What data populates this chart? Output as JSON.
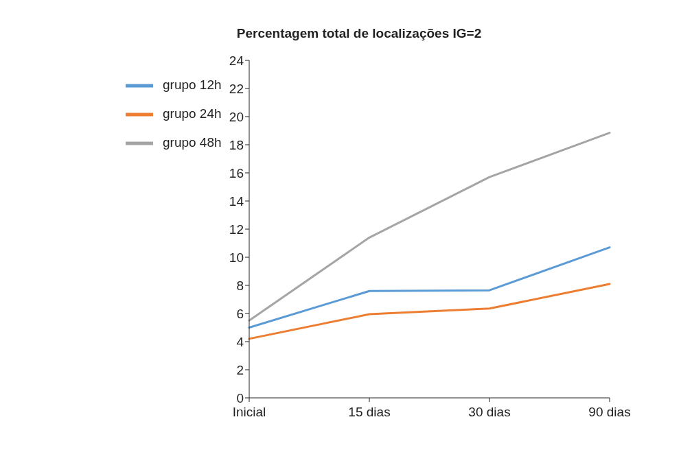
{
  "chart_data": {
    "type": "line",
    "title": "Percentagem total de localizações IG=2",
    "categories": [
      "Inicial",
      "15 dias",
      "30 dias",
      "90 dias"
    ],
    "series": [
      {
        "name": "grupo 12h",
        "color": "#5b9bd5",
        "values": [
          5.0,
          7.6,
          7.65,
          10.7
        ]
      },
      {
        "name": "grupo 24h",
        "color": "#ed7d31",
        "values": [
          4.2,
          5.95,
          6.35,
          8.1
        ]
      },
      {
        "name": "grupo 48h",
        "color": "#a5a5a5",
        "values": [
          5.5,
          11.4,
          15.7,
          18.85
        ]
      }
    ],
    "ylim": [
      0,
      24
    ],
    "yticks": [
      0,
      2,
      4,
      6,
      8,
      10,
      12,
      14,
      16,
      18,
      20,
      22,
      24
    ],
    "grid": false,
    "legend": "top left",
    "marker": "none",
    "line_style": "solid"
  }
}
